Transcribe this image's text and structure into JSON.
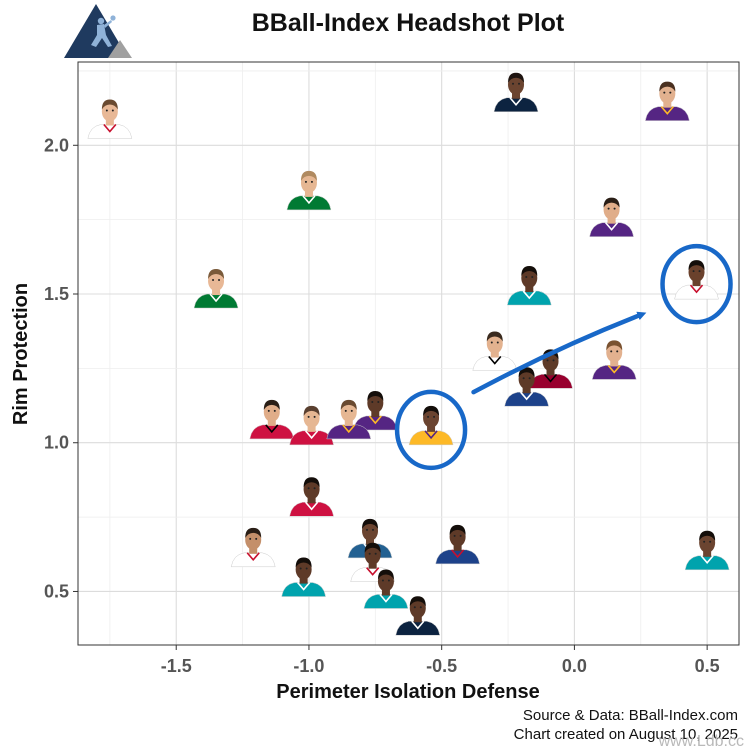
{
  "chart_data": {
    "type": "scatter",
    "title": "BBall-Index Headshot Plot",
    "xlabel": "Perimeter Isolation Defense",
    "ylabel": "Rim Protection",
    "xlim": [
      -1.87,
      0.62
    ],
    "ylim": [
      0.32,
      2.28
    ],
    "x_ticks": [
      -1.5,
      -1.0,
      -0.5,
      0.0,
      0.5
    ],
    "x_tick_labels": [
      "-1.5",
      "-1.0",
      "-0.5",
      "0.0",
      "0.5"
    ],
    "y_ticks": [
      0.5,
      1.0,
      1.5,
      2.0
    ],
    "y_tick_labels": [
      "0.5",
      "1.0",
      "1.5",
      "2.0"
    ],
    "grid": true,
    "legend": "none",
    "points": [
      {
        "x": -1.75,
        "y": 2.08,
        "jersey": "#ffffff",
        "trim": "#c8102e",
        "skin": "#e8b896",
        "hair": "#6a4a30"
      },
      {
        "x": -0.22,
        "y": 2.17,
        "jersey": "#0c2340",
        "trim": "#ffffff",
        "skin": "#6b4430",
        "hair": "#1e1410"
      },
      {
        "x": 0.35,
        "y": 2.14,
        "jersey": "#552583",
        "trim": "#fdb927",
        "skin": "#e2b18f",
        "hair": "#4a3020"
      },
      {
        "x": -1.0,
        "y": 1.84,
        "jersey": "#007a33",
        "trim": "#ffffff",
        "skin": "#e6b793",
        "hair": "#b08a60"
      },
      {
        "x": 0.14,
        "y": 1.75,
        "jersey": "#552583",
        "trim": "#ffffff",
        "skin": "#e0ad89",
        "hair": "#2a1e16"
      },
      {
        "x": -1.35,
        "y": 1.51,
        "jersey": "#007a33",
        "trim": "#ffffff",
        "skin": "#e8b896",
        "hair": "#7a5a3a"
      },
      {
        "x": -0.17,
        "y": 1.52,
        "jersey": "#00a3ad",
        "trim": "#ffffff",
        "skin": "#5e3a28",
        "hair": "#140e0a"
      },
      {
        "x": 0.46,
        "y": 1.54,
        "jersey": "#ffffff",
        "trim": "#c8102e",
        "skin": "#6a412c",
        "hair": "#140e0a"
      },
      {
        "x": -0.3,
        "y": 1.3,
        "jersey": "#ffffff",
        "trim": "#000000",
        "skin": "#e3b28f",
        "hair": "#3a2a1e"
      },
      {
        "x": -0.09,
        "y": 1.24,
        "jersey": "#98002e",
        "trim": "#000000",
        "skin": "#5e3a28",
        "hair": "#140e0a"
      },
      {
        "x": 0.15,
        "y": 1.27,
        "jersey": "#552583",
        "trim": "#fdb927",
        "skin": "#e2b18f",
        "hair": "#7a5230"
      },
      {
        "x": -0.18,
        "y": 1.18,
        "jersey": "#1d428a",
        "trim": "#ffffff",
        "skin": "#5e3a28",
        "hair": "#140e0a"
      },
      {
        "x": -0.75,
        "y": 1.1,
        "jersey": "#552583",
        "trim": "#fdb927",
        "skin": "#5e3a28",
        "hair": "#140e0a"
      },
      {
        "x": -0.54,
        "y": 1.05,
        "jersey": "#fdb927",
        "trim": "#552583",
        "skin": "#6b4430",
        "hair": "#140e0a"
      },
      {
        "x": -1.14,
        "y": 1.07,
        "jersey": "#ce1141",
        "trim": "#000000",
        "skin": "#e0ad89",
        "hair": "#2a1e16"
      },
      {
        "x": -0.99,
        "y": 1.05,
        "jersey": "#ce1141",
        "trim": "#ffffff",
        "skin": "#e6b793",
        "hair": "#5a4030"
      },
      {
        "x": -0.85,
        "y": 1.07,
        "jersey": "#552583",
        "trim": "#fdb927",
        "skin": "#e6b793",
        "hair": "#6a4a30"
      },
      {
        "x": -0.99,
        "y": 0.81,
        "jersey": "#ce1141",
        "trim": "#ffffff",
        "skin": "#5e3a28",
        "hair": "#140e0a"
      },
      {
        "x": -1.21,
        "y": 0.64,
        "jersey": "#ffffff",
        "trim": "#c8102e",
        "skin": "#c48f6a",
        "hair": "#2a1e16"
      },
      {
        "x": -0.77,
        "y": 0.67,
        "jersey": "#236192",
        "trim": "#ffffff",
        "skin": "#6b4430",
        "hair": "#140e0a"
      },
      {
        "x": -0.76,
        "y": 0.59,
        "jersey": "#ffffff",
        "trim": "#c8102e",
        "skin": "#5e3a28",
        "hair": "#140e0a"
      },
      {
        "x": -0.44,
        "y": 0.65,
        "jersey": "#1d428a",
        "trim": "#c8102e",
        "skin": "#5e3a28",
        "hair": "#140e0a"
      },
      {
        "x": -1.02,
        "y": 0.54,
        "jersey": "#00a3ad",
        "trim": "#ffffff",
        "skin": "#5e3a28",
        "hair": "#140e0a"
      },
      {
        "x": -0.71,
        "y": 0.5,
        "jersey": "#00a3ad",
        "trim": "#ffffff",
        "skin": "#5e3a28",
        "hair": "#140e0a"
      },
      {
        "x": -0.59,
        "y": 0.41,
        "jersey": "#0c2340",
        "trim": "#ffffff",
        "skin": "#5e3a28",
        "hair": "#140e0a"
      },
      {
        "x": 0.5,
        "y": 0.63,
        "jersey": "#00a3ad",
        "trim": "#ffffff",
        "skin": "#6b4430",
        "hair": "#140e0a"
      }
    ],
    "annotations": {
      "circles_around_points": [
        13,
        7
      ],
      "arrow": {
        "from": [
          -0.38,
          1.17
        ],
        "to": [
          0.25,
          1.43
        ]
      },
      "annotation_color": "#1868c8"
    },
    "caption_lines": [
      "Source & Data: BBall-Index.com",
      "Chart created on August 10, 2025"
    ],
    "watermark": "www.Ldb.cc",
    "colors": {
      "grid": "#dcdcdc",
      "panel_border": "#333333",
      "logo_dark": "#1f3a5f",
      "logo_grey": "#a0a0a0"
    }
  }
}
